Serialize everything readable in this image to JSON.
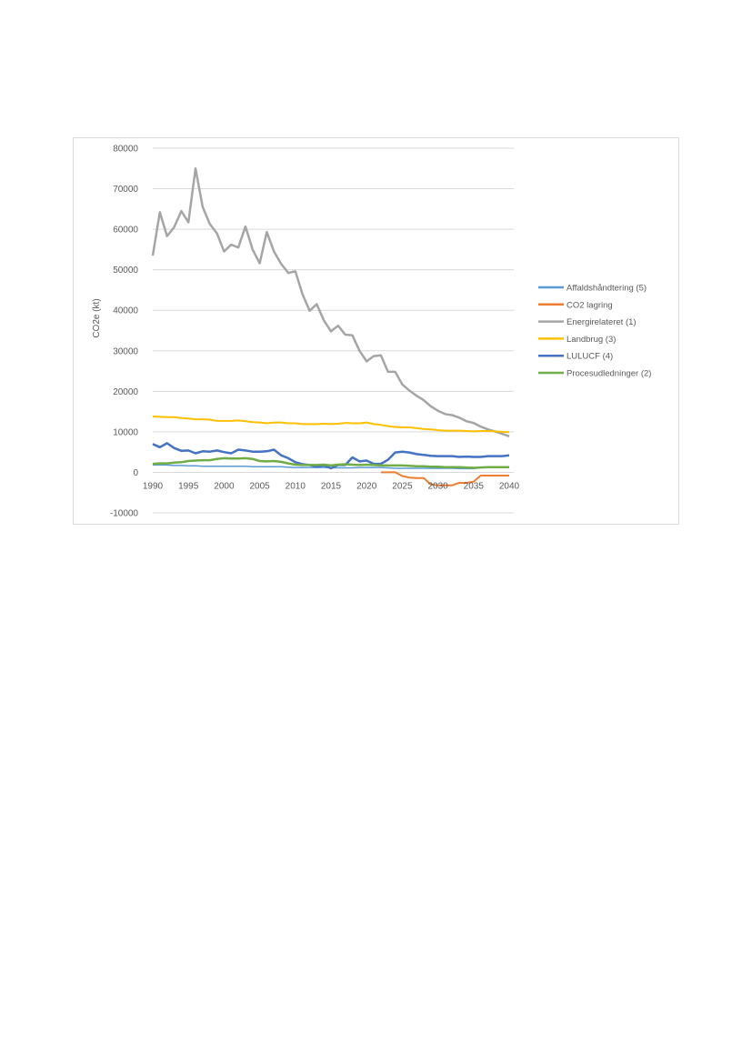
{
  "chart_data": {
    "type": "line",
    "title": "",
    "xlabel": "",
    "ylabel": "CO2e (kt)",
    "ylim": [
      -10000,
      80000
    ],
    "yticks": [
      -10000,
      0,
      10000,
      20000,
      30000,
      40000,
      50000,
      60000,
      70000,
      80000
    ],
    "xlim": [
      1990,
      2040
    ],
    "xticks": [
      1990,
      1995,
      2000,
      2005,
      2010,
      2015,
      2020,
      2025,
      2030,
      2035,
      2040
    ],
    "grid": true,
    "legend": "right",
    "x_start": 1990,
    "series": [
      {
        "name": "Affaldshåndtering (5)",
        "color": "#5B9BD5",
        "width": 1.5,
        "values": [
          1800,
          1800,
          1800,
          1700,
          1700,
          1600,
          1600,
          1500,
          1500,
          1500,
          1500,
          1500,
          1500,
          1500,
          1400,
          1400,
          1400,
          1400,
          1400,
          1300,
          1200,
          1200,
          1200,
          1200,
          1200,
          1100,
          1100,
          1100,
          1100,
          1200,
          1200,
          1200,
          1200,
          1100,
          1000,
          1000,
          1000,
          1000,
          1000,
          1000,
          1000,
          1000,
          1000,
          900,
          900,
          900,
          1200,
          1200,
          1200,
          1200,
          1200
        ]
      },
      {
        "name": "CO2 lagring",
        "color": "#ED7D31",
        "width": 2,
        "values": [
          null,
          null,
          null,
          null,
          null,
          null,
          null,
          null,
          null,
          null,
          null,
          null,
          null,
          null,
          null,
          null,
          null,
          null,
          null,
          null,
          null,
          null,
          null,
          null,
          null,
          null,
          null,
          null,
          null,
          null,
          null,
          null,
          0,
          0,
          0,
          -900,
          -1300,
          -1400,
          -1400,
          -3000,
          -3200,
          -3200,
          -3200,
          -2600,
          -2600,
          -2300,
          -800,
          -800,
          -800,
          -800,
          -800
        ]
      },
      {
        "name": "Energirelateret (1)",
        "color": "#A5A5A5",
        "width": 2.5,
        "values": [
          53500,
          64200,
          58300,
          60500,
          64500,
          61700,
          75000,
          65500,
          61300,
          59000,
          54500,
          56200,
          55500,
          60700,
          55000,
          51600,
          59300,
          54500,
          51500,
          49200,
          49600,
          44000,
          39900,
          41500,
          37500,
          34800,
          36200,
          34000,
          33800,
          30000,
          27400,
          28700,
          28900,
          24800,
          24800,
          21700,
          20200,
          18900,
          17800,
          16300,
          15200,
          14400,
          14100,
          13500,
          12600,
          12200,
          11300,
          10600,
          10100,
          9500,
          8900
        ]
      },
      {
        "name": "Landbrug (3)",
        "color": "#FFC000",
        "width": 2,
        "values": [
          13800,
          13700,
          13600,
          13600,
          13400,
          13300,
          13100,
          13100,
          13000,
          12700,
          12700,
          12700,
          12800,
          12600,
          12400,
          12300,
          12100,
          12300,
          12300,
          12100,
          12100,
          11900,
          11900,
          11900,
          12000,
          11900,
          12000,
          12200,
          12100,
          12100,
          12300,
          11900,
          11700,
          11400,
          11200,
          11100,
          11100,
          10900,
          10700,
          10600,
          10400,
          10300,
          10300,
          10300,
          10200,
          10100,
          10200,
          10200,
          10100,
          10000,
          9900
        ]
      },
      {
        "name": "LULUCF (4)",
        "color": "#4472C4",
        "width": 2.5,
        "values": [
          7000,
          6200,
          7200,
          6000,
          5300,
          5400,
          4700,
          5200,
          5100,
          5400,
          5000,
          4700,
          5600,
          5400,
          5100,
          5100,
          5200,
          5600,
          4200,
          3500,
          2500,
          2000,
          1800,
          1400,
          1700,
          1000,
          1800,
          1800,
          3700,
          2700,
          2900,
          2100,
          2100,
          3100,
          4900,
          5100,
          4900,
          4500,
          4300,
          4100,
          4000,
          4000,
          4000,
          3800,
          3900,
          3800,
          3800,
          4000,
          4000,
          4000,
          4200
        ]
      },
      {
        "name": "Procesudledninger (2)",
        "color": "#70AD47",
        "width": 2.5,
        "values": [
          2100,
          2200,
          2200,
          2400,
          2500,
          2800,
          2900,
          3000,
          3000,
          3300,
          3500,
          3400,
          3400,
          3500,
          3300,
          2800,
          2700,
          2800,
          2600,
          2200,
          1900,
          1800,
          1800,
          1800,
          1900,
          1700,
          1900,
          2000,
          1900,
          1800,
          1900,
          1800,
          1700,
          1700,
          1700,
          1700,
          1600,
          1500,
          1500,
          1400,
          1400,
          1300,
          1300,
          1300,
          1200,
          1100,
          1200,
          1300,
          1300,
          1300,
          1300
        ]
      }
    ]
  }
}
